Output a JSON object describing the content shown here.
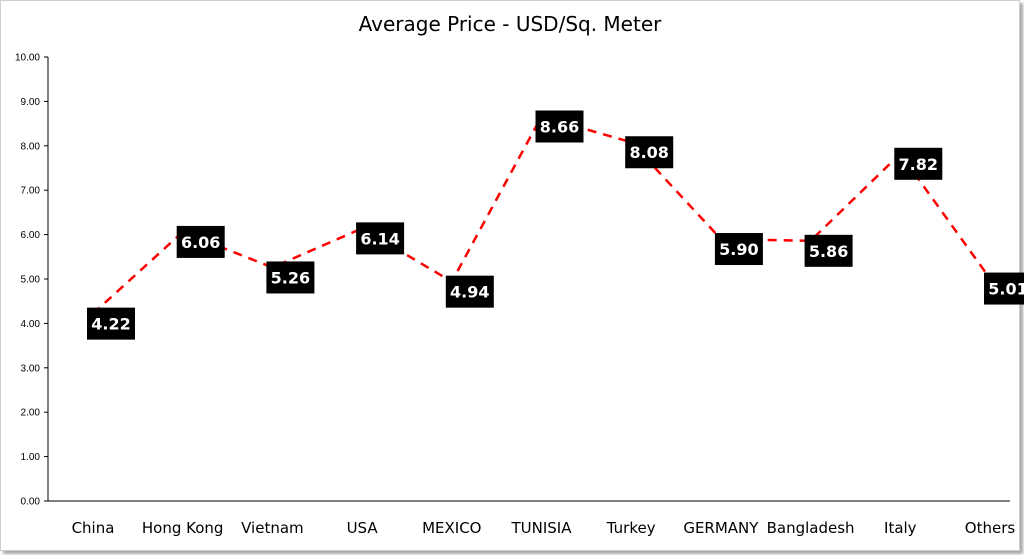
{
  "chart_data": {
    "type": "line",
    "title": "Average Price - USD/Sq. Meter",
    "xlabel": "",
    "ylabel": "",
    "categories": [
      "China",
      "Hong Kong",
      "Vietnam",
      "USA",
      "MEXICO",
      "TUNISIA",
      "Turkey",
      "GERMANY",
      "Bangladesh",
      "Italy",
      "Others"
    ],
    "series": [
      {
        "values": [
          4.22,
          6.06,
          5.26,
          6.14,
          4.94,
          8.66,
          8.08,
          5.9,
          5.86,
          7.82,
          5.01
        ],
        "labels": [
          "4.22",
          "6.06",
          "5.26",
          "6.14",
          "4.94",
          "8.66",
          "8.08",
          "5.90",
          "5.86",
          "7.82",
          "5.01"
        ],
        "color": "#ff0000",
        "line_style": "dashed"
      }
    ],
    "ylim": [
      0,
      10
    ],
    "yticks": [
      "0.00",
      "1.00",
      "2.00",
      "3.00",
      "4.00",
      "5.00",
      "6.00",
      "7.00",
      "8.00",
      "9.00",
      "10.00"
    ],
    "grid": false,
    "legend": "none",
    "data_label_background": "#000000",
    "data_label_color": "#ffffff"
  }
}
